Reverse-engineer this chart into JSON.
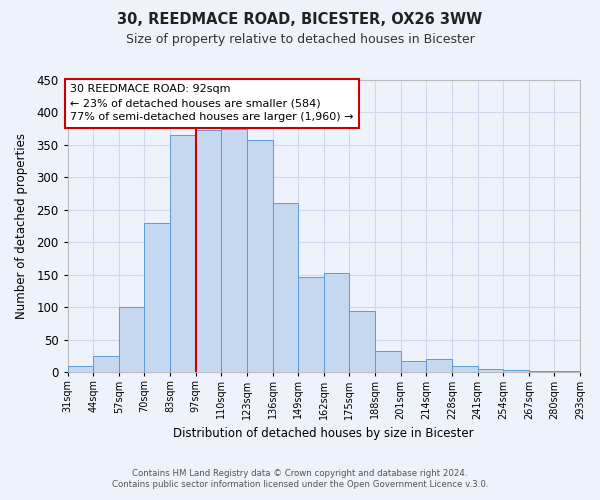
{
  "title1": "30, REEDMACE ROAD, BICESTER, OX26 3WW",
  "title2": "Size of property relative to detached houses in Bicester",
  "xlabel": "Distribution of detached houses by size in Bicester",
  "ylabel": "Number of detached properties",
  "categories": [
    "31sqm",
    "44sqm",
    "57sqm",
    "70sqm",
    "83sqm",
    "97sqm",
    "110sqm",
    "123sqm",
    "136sqm",
    "149sqm",
    "162sqm",
    "175sqm",
    "188sqm",
    "201sqm",
    "214sqm",
    "228sqm",
    "241sqm",
    "254sqm",
    "267sqm",
    "280sqm",
    "293sqm"
  ],
  "values": [
    10,
    25,
    100,
    230,
    365,
    373,
    375,
    357,
    260,
    147,
    153,
    95,
    33,
    18,
    20,
    10,
    5,
    3,
    2,
    2
  ],
  "bar_color": "#c5d8f0",
  "bar_edge_color": "#5b9bd5",
  "background_color": "#eef2fb",
  "grid_color": "#d0d8ee",
  "vline_x": 5,
  "vline_color": "#cc0000",
  "annotation_title": "30 REEDMACE ROAD: 92sqm",
  "annotation_line1": "← 23% of detached houses are smaller (584)",
  "annotation_line2": "77% of semi-detached houses are larger (1,960) →",
  "box_color": "#cc0000",
  "ylim": [
    0,
    450
  ],
  "yticks": [
    0,
    50,
    100,
    150,
    200,
    250,
    300,
    350,
    400,
    450
  ],
  "footer1": "Contains HM Land Registry data © Crown copyright and database right 2024.",
  "footer2": "Contains public sector information licensed under the Open Government Licence v.3.0."
}
